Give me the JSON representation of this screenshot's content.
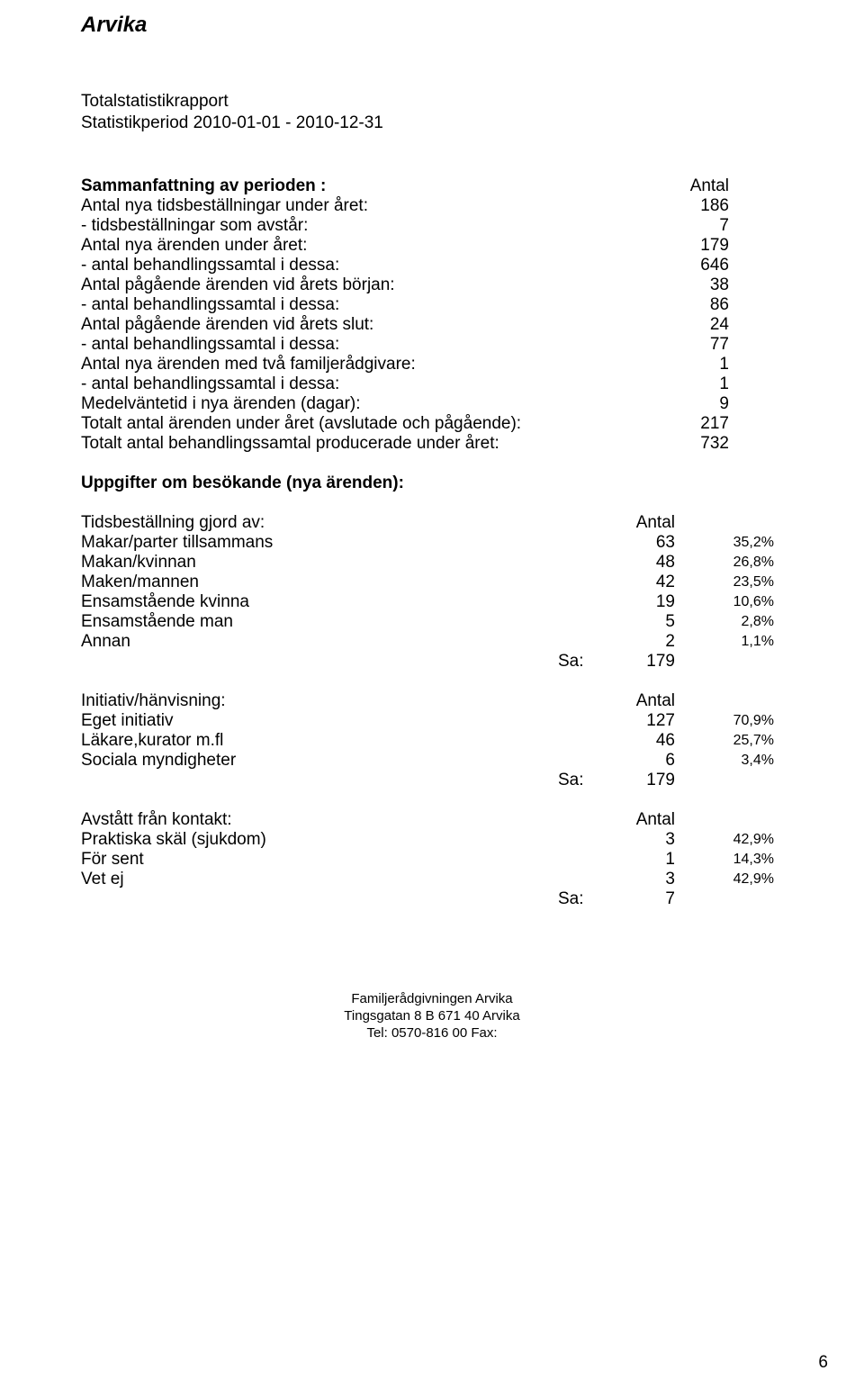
{
  "doc_title": "Arvika",
  "report_title": "Totalstatistikrapport",
  "period_line": "Statistikperiod 2010-01-01 - 2010-12-31",
  "summary": {
    "heading_label": "Sammanfattning av perioden :",
    "heading_value": "Antal",
    "rows": [
      {
        "label": "Antal nya tidsbeställningar under året:",
        "value": "186"
      },
      {
        "label": "- tidsbeställningar som avstår:",
        "value": "7"
      },
      {
        "label": "Antal nya ärenden under året:",
        "value": "179"
      },
      {
        "label": "- antal behandlingssamtal i dessa:",
        "value": "646"
      },
      {
        "label": "Antal pågående ärenden vid årets början:",
        "value": "38"
      },
      {
        "label": "- antal behandlingssamtal i dessa:",
        "value": "86"
      },
      {
        "label": "Antal pågående ärenden vid årets slut:",
        "value": "24"
      },
      {
        "label": "- antal behandlingssamtal i dessa:",
        "value": "77"
      },
      {
        "label": "Antal nya ärenden med två familjerådgivare:",
        "value": "1"
      },
      {
        "label": "- antal behandlingssamtal i dessa:",
        "value": "1"
      },
      {
        "label": "Medelväntetid i nya ärenden (dagar):",
        "value": "9"
      },
      {
        "label": "Totalt antal ärenden under året (avslutade och pågående):",
        "value": "217"
      },
      {
        "label": "Totalt antal behandlingssamtal producerade under året:",
        "value": "732"
      }
    ]
  },
  "visitors_heading": "Uppgifter om besökande (nya ärenden):",
  "antal_label": "Antal",
  "sa_label": "Sa:",
  "tables": {
    "tidsbestallning": {
      "title": "Tidsbeställning gjord av:",
      "rows": [
        {
          "label": "Makar/parter tillsammans",
          "value": "63",
          "pct": "35,2%"
        },
        {
          "label": "Makan/kvinnan",
          "value": "48",
          "pct": "26,8%"
        },
        {
          "label": "Maken/mannen",
          "value": "42",
          "pct": "23,5%"
        },
        {
          "label": "Ensamstående kvinna",
          "value": "19",
          "pct": "10,6%"
        },
        {
          "label": "Ensamstående man",
          "value": "5",
          "pct": "2,8%"
        },
        {
          "label": "Annan",
          "value": "2",
          "pct": "1,1%"
        }
      ],
      "total": "179"
    },
    "initiativ": {
      "title": "Initiativ/hänvisning:",
      "rows": [
        {
          "label": "Eget initiativ",
          "value": "127",
          "pct": "70,9%"
        },
        {
          "label": "Läkare,kurator m.fl",
          "value": "46",
          "pct": "25,7%"
        },
        {
          "label": "Sociala myndigheter",
          "value": "6",
          "pct": "3,4%"
        }
      ],
      "total": "179"
    },
    "avstatt": {
      "title": "Avstått från kontakt:",
      "rows": [
        {
          "label": "Praktiska skäl (sjukdom)",
          "value": "3",
          "pct": "42,9%"
        },
        {
          "label": "För sent",
          "value": "1",
          "pct": "14,3%"
        },
        {
          "label": "Vet ej",
          "value": "3",
          "pct": "42,9%"
        }
      ],
      "total": "7"
    }
  },
  "footer": {
    "line1": "Familjerådgivningen Arvika",
    "line2": "Tingsgatan 8 B   671 40   Arvika",
    "line3": "Tel: 0570-816 00   Fax:"
  },
  "page_number": "6"
}
